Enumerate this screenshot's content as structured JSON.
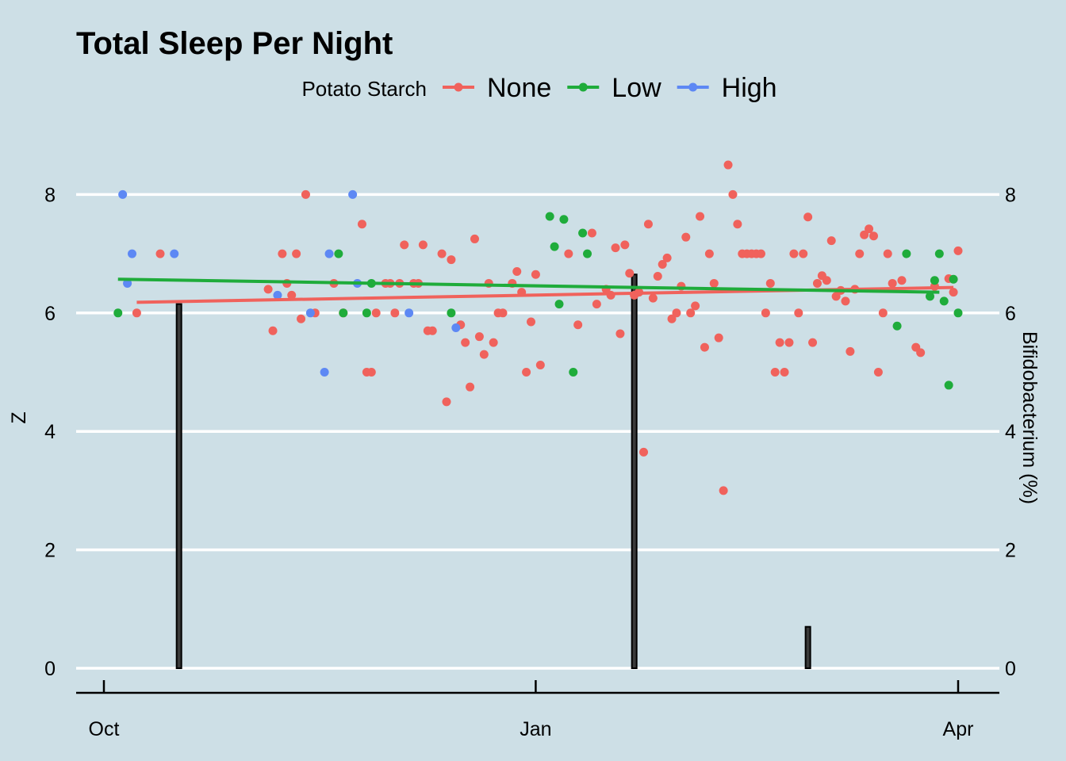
{
  "chart_data": {
    "type": "scatter",
    "title": "Total Sleep Per Night",
    "ylabel": "Z",
    "y2label": "Bifidobacterium (%)",
    "ylim": [
      0,
      9
    ],
    "y_ticks": [
      "0",
      "2",
      "4",
      "6",
      "8"
    ],
    "y2_ticks": [
      "0",
      "2",
      "4",
      "6",
      "8"
    ],
    "x_ticks": [
      {
        "label": "Oct",
        "date": "2016-10-01"
      },
      {
        "label": "Jan",
        "date": "2017-01-01"
      },
      {
        "label": "Apr",
        "date": "2017-04-01"
      }
    ],
    "xlim": [
      "2016-09-25",
      "2017-04-10"
    ],
    "grid": "horizontal",
    "legend": {
      "title": "Potato Starch",
      "position": "top"
    },
    "series": [
      {
        "name": "None",
        "color": "#f0625c",
        "trend": [
          [
            "2016-10-08",
            6.18
          ],
          [
            "2017-03-31",
            6.43
          ]
        ],
        "points": [
          [
            "2016-10-08",
            6.0
          ],
          [
            "2016-10-13",
            7.0
          ],
          [
            "2016-11-05",
            6.4
          ],
          [
            "2016-11-06",
            5.7
          ],
          [
            "2016-11-08",
            7.0
          ],
          [
            "2016-11-09",
            6.5
          ],
          [
            "2016-11-10",
            6.3
          ],
          [
            "2016-11-11",
            7.0
          ],
          [
            "2016-11-12",
            5.9
          ],
          [
            "2016-11-13",
            8.0
          ],
          [
            "2016-11-15",
            6.0
          ],
          [
            "2016-11-19",
            6.5
          ],
          [
            "2016-11-21",
            6.0
          ],
          [
            "2016-11-25",
            7.5
          ],
          [
            "2016-11-26",
            5.0
          ],
          [
            "2016-11-27",
            5.0
          ],
          [
            "2016-11-28",
            6.0
          ],
          [
            "2016-11-30",
            6.5
          ],
          [
            "2016-12-01",
            6.5
          ],
          [
            "2016-12-02",
            6.0
          ],
          [
            "2016-12-03",
            6.5
          ],
          [
            "2016-12-04",
            7.15
          ],
          [
            "2016-12-06",
            6.5
          ],
          [
            "2016-12-07",
            6.5
          ],
          [
            "2016-12-08",
            7.15
          ],
          [
            "2016-12-09",
            5.7
          ],
          [
            "2016-12-10",
            5.7
          ],
          [
            "2016-12-12",
            7.0
          ],
          [
            "2016-12-13",
            4.5
          ],
          [
            "2016-12-14",
            6.9
          ],
          [
            "2016-12-16",
            5.8
          ],
          [
            "2016-12-17",
            5.5
          ],
          [
            "2016-12-18",
            4.75
          ],
          [
            "2016-12-19",
            7.25
          ],
          [
            "2016-12-20",
            5.6
          ],
          [
            "2016-12-21",
            5.3
          ],
          [
            "2016-12-22",
            6.5
          ],
          [
            "2016-12-23",
            5.5
          ],
          [
            "2016-12-24",
            6.0
          ],
          [
            "2016-12-25",
            6.0
          ],
          [
            "2016-12-27",
            6.5
          ],
          [
            "2016-12-28",
            6.7
          ],
          [
            "2016-12-29",
            6.35
          ],
          [
            "2016-12-30",
            5.0
          ],
          [
            "2016-12-31",
            5.85
          ],
          [
            "2017-01-01",
            6.65
          ],
          [
            "2017-01-02",
            5.12
          ],
          [
            "2017-01-08",
            7.0
          ],
          [
            "2017-01-10",
            5.8
          ],
          [
            "2017-01-13",
            7.35
          ],
          [
            "2017-01-14",
            6.15
          ],
          [
            "2017-01-16",
            6.4
          ],
          [
            "2017-01-17",
            6.3
          ],
          [
            "2017-01-18",
            7.1
          ],
          [
            "2017-01-19",
            5.65
          ],
          [
            "2017-01-20",
            7.15
          ],
          [
            "2017-01-21",
            6.67
          ],
          [
            "2017-01-22",
            6.3
          ],
          [
            "2017-01-23",
            6.35
          ],
          [
            "2017-01-24",
            3.65
          ],
          [
            "2017-01-25",
            7.5
          ],
          [
            "2017-01-26",
            6.25
          ],
          [
            "2017-01-27",
            6.62
          ],
          [
            "2017-01-28",
            6.82
          ],
          [
            "2017-01-29",
            6.93
          ],
          [
            "2017-01-30",
            5.9
          ],
          [
            "2017-01-31",
            6.0
          ],
          [
            "2017-02-01",
            6.45
          ],
          [
            "2017-02-02",
            7.28
          ],
          [
            "2017-02-03",
            6.0
          ],
          [
            "2017-02-04",
            6.12
          ],
          [
            "2017-02-05",
            7.63
          ],
          [
            "2017-02-06",
            5.42
          ],
          [
            "2017-02-07",
            7.0
          ],
          [
            "2017-02-08",
            6.5
          ],
          [
            "2017-02-09",
            5.58
          ],
          [
            "2017-02-10",
            3.0
          ],
          [
            "2017-02-11",
            8.5
          ],
          [
            "2017-02-12",
            8.0
          ],
          [
            "2017-02-13",
            7.5
          ],
          [
            "2017-02-14",
            7.0
          ],
          [
            "2017-02-15",
            7.0
          ],
          [
            "2017-02-16",
            7.0
          ],
          [
            "2017-02-17",
            7.0
          ],
          [
            "2017-02-18",
            7.0
          ],
          [
            "2017-02-19",
            6.0
          ],
          [
            "2017-02-20",
            6.5
          ],
          [
            "2017-02-21",
            5.0
          ],
          [
            "2017-02-22",
            5.5
          ],
          [
            "2017-02-23",
            5.0
          ],
          [
            "2017-02-24",
            5.5
          ],
          [
            "2017-02-25",
            7.0
          ],
          [
            "2017-02-26",
            6.0
          ],
          [
            "2017-02-27",
            7.0
          ],
          [
            "2017-02-28",
            7.62
          ],
          [
            "2017-03-01",
            5.5
          ],
          [
            "2017-03-02",
            6.5
          ],
          [
            "2017-03-03",
            6.63
          ],
          [
            "2017-03-04",
            6.55
          ],
          [
            "2017-03-05",
            7.22
          ],
          [
            "2017-03-06",
            6.28
          ],
          [
            "2017-03-07",
            6.38
          ],
          [
            "2017-03-08",
            6.2
          ],
          [
            "2017-03-09",
            5.35
          ],
          [
            "2017-03-10",
            6.4
          ],
          [
            "2017-03-11",
            7.0
          ],
          [
            "2017-03-12",
            7.32
          ],
          [
            "2017-03-13",
            7.42
          ],
          [
            "2017-03-14",
            7.3
          ],
          [
            "2017-03-15",
            5.0
          ],
          [
            "2017-03-16",
            6.0
          ],
          [
            "2017-03-17",
            7.0
          ],
          [
            "2017-03-18",
            6.5
          ],
          [
            "2017-03-20",
            6.55
          ],
          [
            "2017-03-23",
            5.42
          ],
          [
            "2017-03-24",
            5.33
          ],
          [
            "2017-03-27",
            6.45
          ],
          [
            "2017-03-30",
            6.58
          ],
          [
            "2017-03-31",
            6.35
          ],
          [
            "2017-04-01",
            7.05
          ]
        ]
      },
      {
        "name": "Low",
        "color": "#1fac3b",
        "trend": [
          [
            "2016-10-04",
            6.57
          ],
          [
            "2017-03-28",
            6.35
          ]
        ],
        "points": [
          [
            "2016-10-04",
            6.0
          ],
          [
            "2016-11-20",
            7.0
          ],
          [
            "2016-11-21",
            6.0
          ],
          [
            "2016-11-26",
            6.0
          ],
          [
            "2016-11-27",
            6.5
          ],
          [
            "2016-12-14",
            6.0
          ],
          [
            "2017-01-04",
            7.63
          ],
          [
            "2017-01-05",
            7.12
          ],
          [
            "2017-01-06",
            6.15
          ],
          [
            "2017-01-07",
            7.58
          ],
          [
            "2017-01-09",
            5.0
          ],
          [
            "2017-01-11",
            7.35
          ],
          [
            "2017-01-12",
            7.0
          ],
          [
            "2017-03-19",
            5.78
          ],
          [
            "2017-03-21",
            7.0
          ],
          [
            "2017-03-26",
            6.28
          ],
          [
            "2017-03-27",
            6.55
          ],
          [
            "2017-03-28",
            7.0
          ],
          [
            "2017-03-29",
            6.2
          ],
          [
            "2017-03-30",
            4.78
          ],
          [
            "2017-03-31",
            6.57
          ],
          [
            "2017-04-01",
            6.0
          ]
        ]
      },
      {
        "name": "High",
        "color": "#5d88f4",
        "trend": [],
        "points": [
          [
            "2016-10-05",
            8.0
          ],
          [
            "2016-10-06",
            6.5
          ],
          [
            "2016-10-07",
            7.0
          ],
          [
            "2016-10-16",
            7.0
          ],
          [
            "2016-11-07",
            6.3
          ],
          [
            "2016-11-14",
            6.0
          ],
          [
            "2016-11-17",
            5.0
          ],
          [
            "2016-11-18",
            7.0
          ],
          [
            "2016-11-23",
            8.0
          ],
          [
            "2016-11-24",
            6.5
          ],
          [
            "2016-12-05",
            6.0
          ],
          [
            "2016-12-15",
            5.75
          ]
        ]
      }
    ],
    "bars": {
      "axis": "Bifidobacterium (%)",
      "color": "#000000",
      "values": [
        [
          "2016-10-17",
          6.15
        ],
        [
          "2017-01-22",
          6.65
        ],
        [
          "2017-02-28",
          0.7
        ]
      ]
    }
  }
}
